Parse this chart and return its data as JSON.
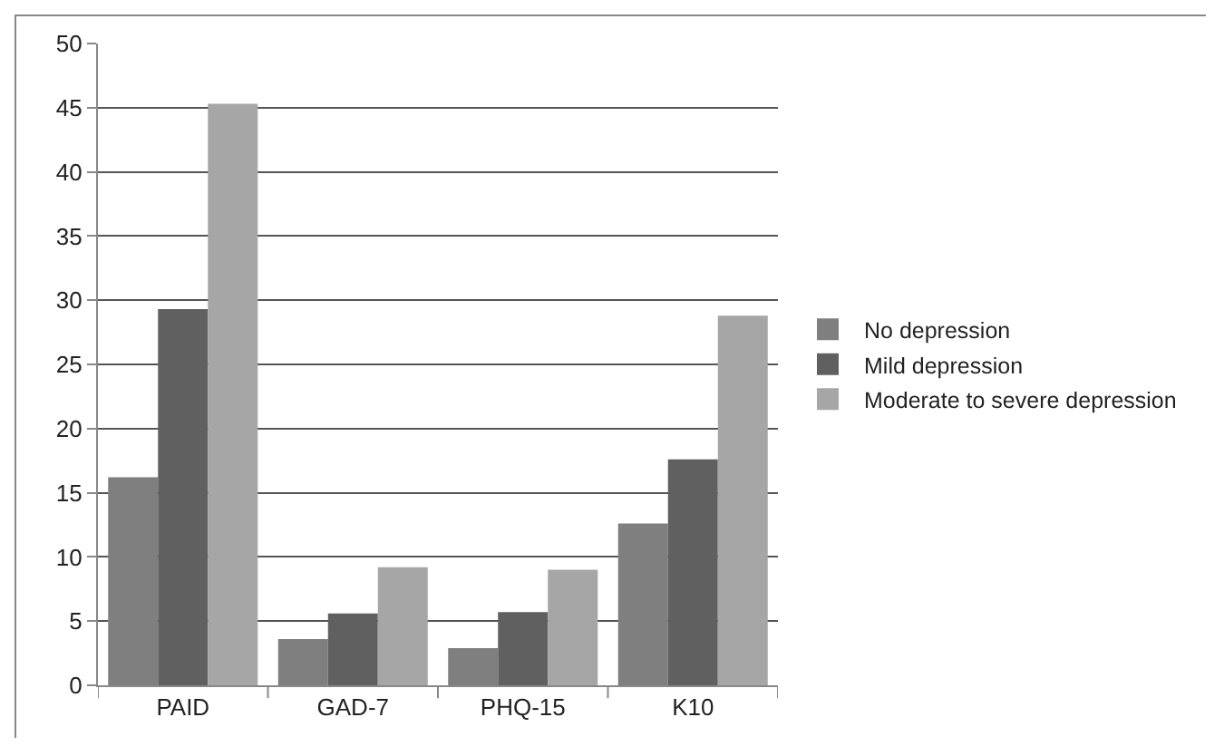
{
  "chart_data": {
    "type": "bar",
    "categories": [
      "PAID",
      "GAD-7",
      "PHQ-15",
      "K10"
    ],
    "series": [
      {
        "name": "No depression",
        "color": "#7f7f7f",
        "values": [
          16.2,
          3.6,
          2.9,
          12.6
        ]
      },
      {
        "name": "Mild depression",
        "color": "#606060",
        "values": [
          29.3,
          5.6,
          5.7,
          17.6
        ]
      },
      {
        "name": "Moderate to severe depression",
        "color": "#a6a6a6",
        "values": [
          45.3,
          9.2,
          9.0,
          28.8
        ]
      }
    ],
    "ylim": [
      0,
      50
    ],
    "yticks": [
      0,
      5,
      10,
      15,
      20,
      25,
      30,
      35,
      40,
      45,
      50
    ],
    "grid": "y",
    "legend": "right"
  }
}
